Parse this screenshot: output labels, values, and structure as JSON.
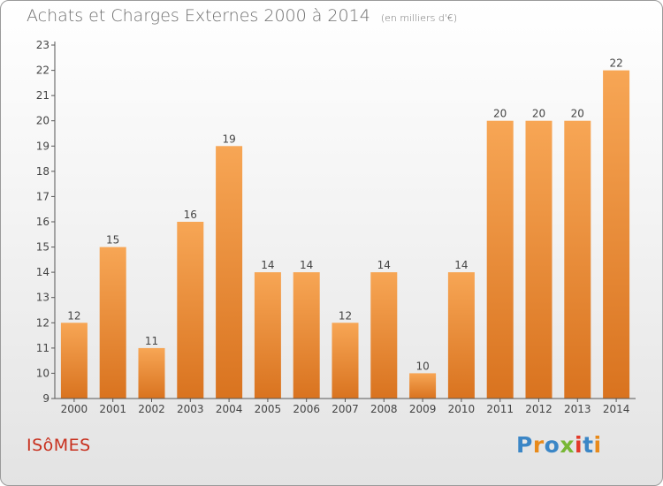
{
  "chart_data": {
    "type": "bar",
    "title": "Achats et Charges Externes 2000 à 2014",
    "subtitle": "(en milliers d'€)",
    "categories": [
      "2000",
      "2001",
      "2002",
      "2003",
      "2004",
      "2005",
      "2006",
      "2007",
      "2008",
      "2009",
      "2010",
      "2011",
      "2012",
      "2013",
      "2014"
    ],
    "values": [
      12,
      15,
      11,
      16,
      19,
      14,
      14,
      12,
      14,
      10,
      14,
      20,
      20,
      20,
      22
    ],
    "ylim": [
      9,
      23
    ],
    "yticks": [
      9,
      10,
      11,
      12,
      13,
      14,
      15,
      16,
      17,
      18,
      19,
      20,
      21,
      22,
      23
    ],
    "grid": false,
    "colors": {
      "bar_light": "#f7a655",
      "bar_dark": "#d9731f",
      "axis": "#555555",
      "text": "#444444"
    }
  },
  "commune": "ISôMES",
  "logo": {
    "letters": [
      "P",
      "r",
      "o",
      "x",
      "i",
      "t",
      "i"
    ]
  }
}
